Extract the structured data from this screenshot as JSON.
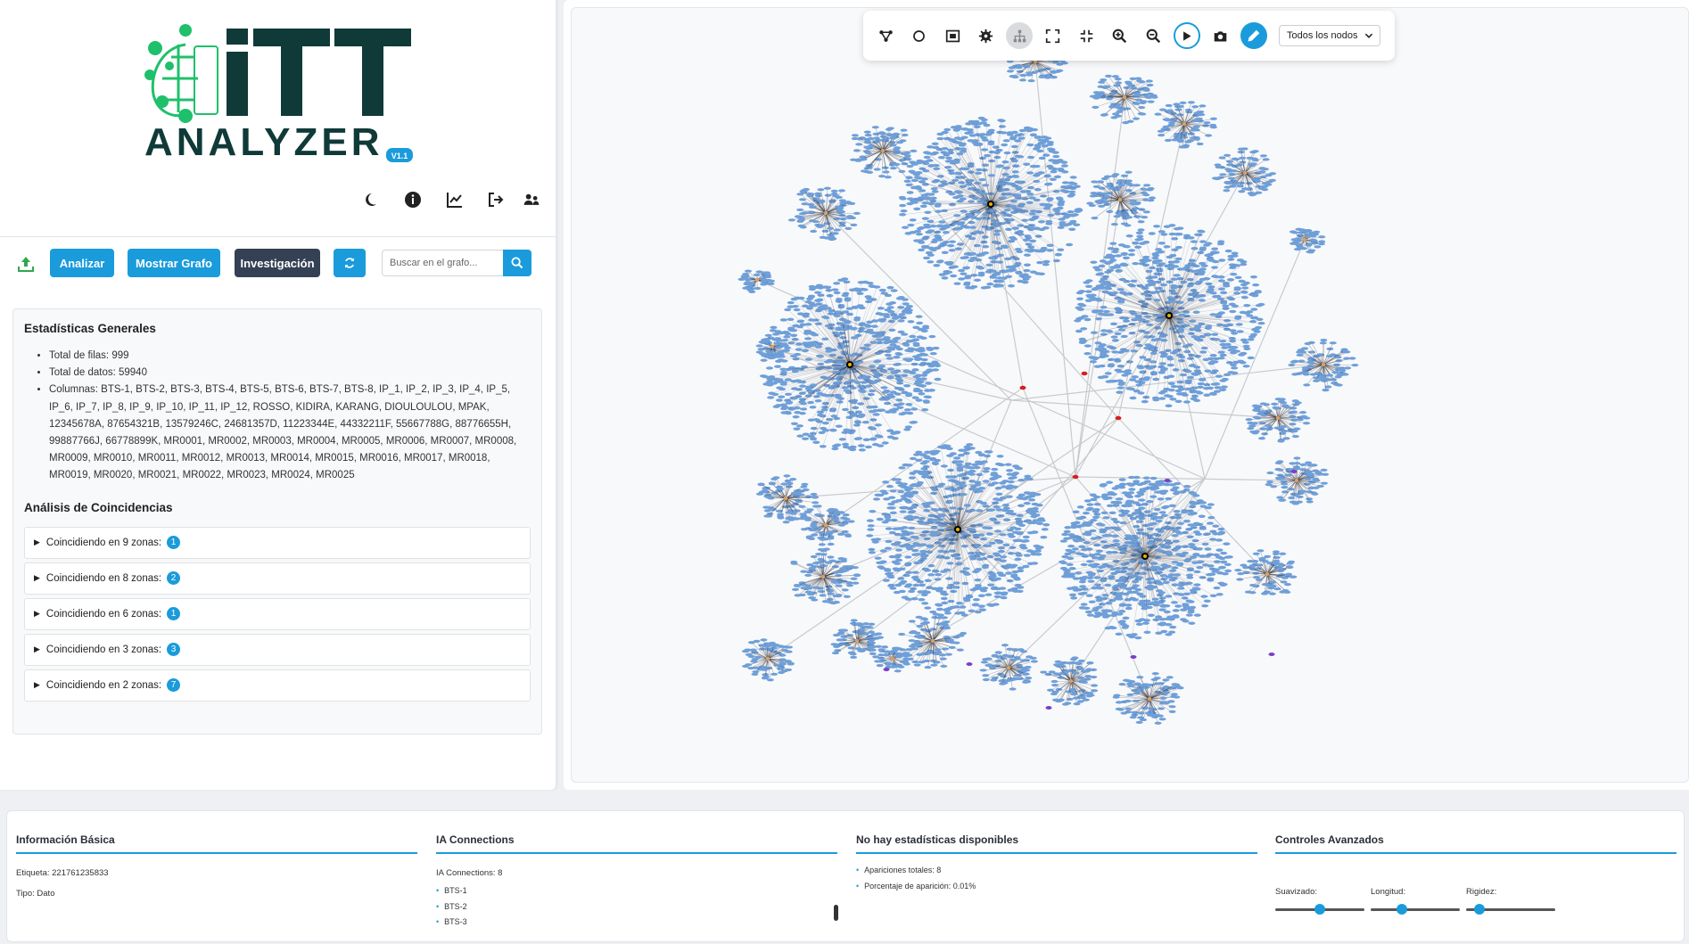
{
  "app": {
    "logo_text": "iTT",
    "logo_sub": "ANALYZER",
    "version": "V1.1"
  },
  "header_icons": [
    "moon-icon",
    "info-icon",
    "chart-line-icon",
    "sign-out-icon",
    "users-icon"
  ],
  "toolbar": {
    "analizar": "Analizar",
    "mostrar_grafo": "Mostrar Grafo",
    "investigacion": "Investigación",
    "search_placeholder": "Buscar en el grafo..."
  },
  "stats": {
    "title": "Estadísticas Generales",
    "total_filas": "Total de filas: 999",
    "total_datos": "Total de datos: 59940",
    "columnas": "Columnas: BTS-1, BTS-2, BTS-3, BTS-4, BTS-5, BTS-6, BTS-7, BTS-8, IP_1, IP_2, IP_3, IP_4, IP_5, IP_6, IP_7, IP_8, IP_9, IP_10, IP_11, IP_12, ROSSO, KIDIRA, KARANG, DIOULOULOU, MPAK, 12345678A, 87654321B, 13579246C, 24681357D, 11223344E, 44332211F, 55667788G, 88776655H, 99887766J, 66778899K, MR0001, MR0002, MR0003, MR0004, MR0005, MR0006, MR0007, MR0008, MR0009, MR0010, MR0011, MR0012, MR0013, MR0014, MR0015, MR0016, MR0017, MR0018, MR0019, MR0020, MR0021, MR0022, MR0023, MR0024, MR0025"
  },
  "coincidencias": {
    "title": "Análisis de Coincidencias",
    "items": [
      {
        "label": "Coincidiendo en 9 zonas:",
        "count": "1"
      },
      {
        "label": "Coincidiendo en 8 zonas:",
        "count": "2"
      },
      {
        "label": "Coincidiendo en 6 zonas:",
        "count": "1"
      },
      {
        "label": "Coincidiendo en 3 zonas:",
        "count": "3"
      },
      {
        "label": "Coincidiendo en 2 zonas:",
        "count": "7"
      }
    ]
  },
  "graph_toolbar": {
    "node_filter": "Todos los nodos"
  },
  "bottom": {
    "info": {
      "title": "Información Básica",
      "etiqueta": "Etiqueta: 221761235833",
      "tipo": "Tipo: Dato"
    },
    "ia": {
      "title": "IA Connections",
      "count": "IA Connections: 8",
      "items": [
        "BTS-1",
        "BTS-2",
        "BTS-3"
      ]
    },
    "estad": {
      "title": "No hay estadísticas disponibles",
      "items": [
        "Apariciones totales: 8",
        "Porcentaje de aparición: 0.01%"
      ]
    },
    "controles": {
      "title": "Controles Avanzados",
      "suavizado": "Suavizado:",
      "longitud": "Longitud:",
      "rigidez": "Rigidez:",
      "suavizado_value": 0.5,
      "longitud_value": 0.35,
      "rigidez_value": 0.15
    }
  },
  "colors": {
    "accent": "#1a9bdb",
    "dark_button": "#344155",
    "logo_dark": "#0f3a38",
    "logo_green": "#1fc06b",
    "node_blue": "#6f9fd8"
  }
}
